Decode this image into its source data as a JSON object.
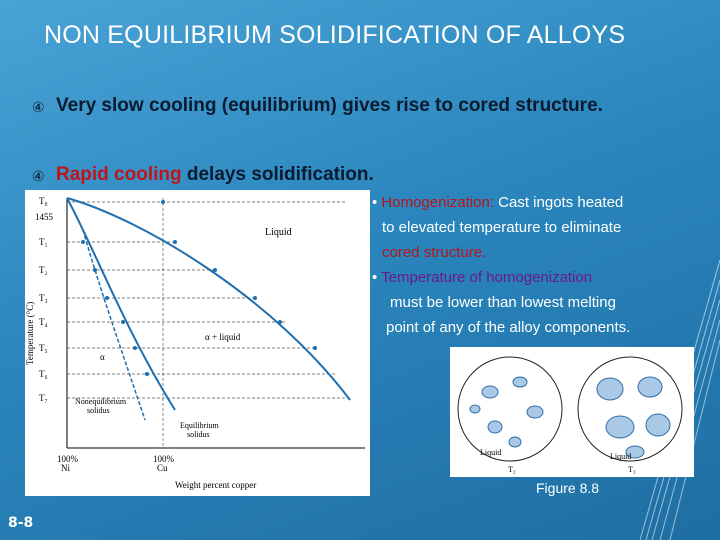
{
  "slide": {
    "title": "NON EQUILIBRIUM SOLIDIFICATION OF ALLOYS",
    "bullets": [
      {
        "mark": "④",
        "text": "Very slow cooling (equilibrium) gives rise to cored structure."
      },
      {
        "mark": "④",
        "highlight": "Rapid cooling",
        "rest": " delays solidification."
      }
    ],
    "notes": {
      "n1_label": "Homogenization:",
      "n1_text_a": " Cast ingots heated",
      "n1_text_b": "to elevated temperature to eliminate",
      "n1_text_c": "cored structure.",
      "n2_label": "Temperature of homogenization",
      "n2_text_a": "must be lower than lowest melting",
      "n2_text_b": "point of any of the alloy components."
    },
    "figure_caption": "Figure 8.8",
    "slide_number": "8-8",
    "colors": {
      "title": "#ffffff",
      "accent_red": "#c0141b",
      "purple": "#6b1a8a",
      "background": "#2a86bd"
    }
  },
  "phase_diagram": {
    "temps": [
      "T₀",
      "1455",
      "T₁",
      "T₂",
      "T₃",
      "T₄",
      "T₅",
      "T₆",
      "T₇"
    ],
    "ylabel": "Temperature (°C)",
    "xlabel": "Weight percent copper",
    "x_left": "100%",
    "x_left_sub": "Ni",
    "x_right": "100%",
    "x_right_sub": "Cu",
    "region_liquid": "Liquid",
    "region_two_phase": "α + liquid",
    "region_alpha": "α",
    "label_noneq": "Nonequilibrium",
    "label_noneq2": "solidus",
    "label_eq": "Equilibrium",
    "label_eq2": "solidus"
  },
  "micrographs": {
    "label_left": "Liquid",
    "label_right": "Liquid",
    "t_left": "T₂",
    "t_right": "T₃"
  }
}
